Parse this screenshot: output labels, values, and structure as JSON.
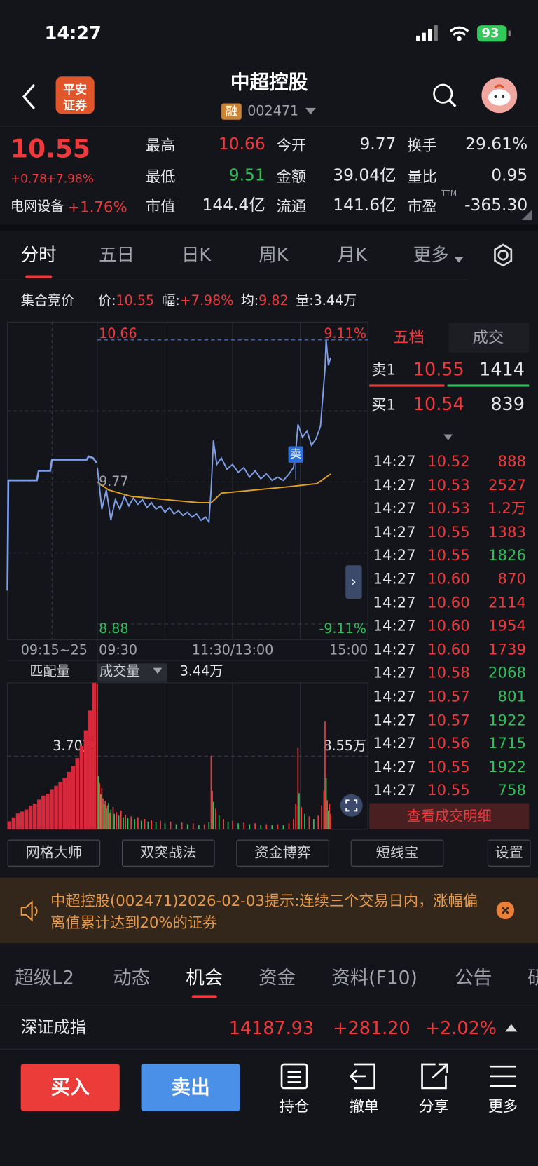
{
  "status_bar": {
    "time": "14:27",
    "battery": "93"
  },
  "header": {
    "logo": [
      "平安",
      "证券"
    ],
    "title": "中超控股",
    "tag": "融",
    "code": "002471"
  },
  "quote": {
    "price": "10.55",
    "change": "+0.78",
    "change_pct": "+7.98%",
    "sector": "电网设备",
    "sector_pct": "+1.76%",
    "ttm": "TTM",
    "stats": [
      {
        "label": "最高",
        "value": "10.66",
        "tone": "up"
      },
      {
        "label": "今开",
        "value": "9.77",
        "tone": "flat"
      },
      {
        "label": "换手",
        "value": "29.61%",
        "tone": "flat"
      },
      {
        "label": "最低",
        "value": "9.51",
        "tone": "down"
      },
      {
        "label": "金额",
        "value": "39.04亿",
        "tone": "flat"
      },
      {
        "label": "量比",
        "value": "0.95",
        "tone": "flat"
      },
      {
        "label": "市值",
        "value": "144.4亿",
        "tone": "flat"
      },
      {
        "label": "流通",
        "value": "141.6亿",
        "tone": "flat"
      },
      {
        "label": "市盈",
        "value": "-365.30",
        "tone": "flat"
      }
    ]
  },
  "tabs": [
    "分时",
    "五日",
    "日K",
    "周K",
    "月K",
    "更多"
  ],
  "active_tab": 0,
  "summary": {
    "label": "集合竞价",
    "items": [
      {
        "label": "价:",
        "value": "10.55",
        "tone": "up"
      },
      {
        "label": "幅:",
        "value": "+7.98%",
        "tone": "up"
      },
      {
        "label": "均:",
        "value": "9.82",
        "tone": "up"
      },
      {
        "label": "量:",
        "value": "3.44万",
        "tone": "flat"
      }
    ]
  },
  "chart": {
    "ylim": [
      8.88,
      10.66
    ],
    "yticks": [
      10.66,
      9.77,
      8.88
    ],
    "pct_labels": [
      "9.11%",
      "-9.11%"
    ],
    "xlim": [
      0,
      240
    ],
    "auction_xlim": [
      0,
      10
    ],
    "x_labels": [
      "09:15~25",
      "09:30",
      "11:30/13:00",
      "15:00"
    ],
    "sell_marker": {
      "label": "卖",
      "minute": 176
    },
    "price_line": {
      "minutes": [
        0,
        4,
        8,
        12,
        16,
        20,
        24,
        28,
        32,
        36,
        40,
        44,
        48,
        52,
        56,
        60,
        64,
        68,
        72,
        76,
        80,
        84,
        88,
        92,
        96,
        99,
        101,
        103,
        106,
        110,
        115,
        120,
        125,
        130,
        135,
        140,
        145,
        150,
        155,
        160,
        165,
        170,
        174,
        176,
        178,
        182,
        186,
        190,
        194,
        198,
        200,
        202,
        203,
        205,
        207
      ],
      "prices": [
        9.86,
        9.6,
        9.72,
        9.53,
        9.66,
        9.6,
        9.68,
        9.62,
        9.67,
        9.63,
        9.66,
        9.61,
        9.64,
        9.6,
        9.62,
        9.58,
        9.61,
        9.57,
        9.59,
        9.56,
        9.58,
        9.55,
        9.57,
        9.53,
        9.55,
        9.52,
        9.73,
        10.03,
        9.88,
        9.92,
        9.85,
        9.88,
        9.83,
        9.86,
        9.8,
        9.84,
        9.79,
        9.82,
        9.78,
        9.8,
        9.78,
        9.82,
        9.86,
        9.96,
        10.13,
        10.05,
        10.09,
        10,
        10.04,
        10.12,
        10.3,
        10.48,
        10.66,
        10.5,
        10.55
      ]
    },
    "avg_line": {
      "minutes": [
        0,
        10,
        30,
        60,
        90,
        101,
        110,
        140,
        170,
        195,
        207
      ],
      "prices": [
        9.77,
        9.72,
        9.68,
        9.66,
        9.64,
        9.64,
        9.7,
        9.72,
        9.74,
        9.76,
        9.82
      ]
    },
    "auction_line": {
      "minutes": [
        0,
        0.1,
        3.3,
        3.5,
        4.8,
        5,
        8.9,
        9.1,
        9.6,
        10
      ],
      "prices": [
        9.09,
        9.78,
        9.78,
        9.84,
        9.84,
        9.91,
        9.91,
        9.93,
        9.92,
        9.89
      ]
    }
  },
  "volume": {
    "left_label": "匹配量",
    "selector": "成交量",
    "value": "3.44万",
    "ylim": [
      0,
      17.1
    ],
    "yticks": [
      {
        "value": 8.55,
        "label": "8.55万"
      }
    ],
    "auction_ylim": [
      0,
      7.4
    ],
    "auction_yticks": [
      {
        "value": 3.7,
        "label": "3.70万"
      }
    ],
    "bars": [
      [
        0,
        17,
        true
      ],
      [
        1,
        6.2,
        false
      ],
      [
        2,
        5.4,
        true
      ],
      [
        3,
        4.1,
        false
      ],
      [
        4,
        4.8,
        true
      ],
      [
        5,
        3.6,
        true
      ],
      [
        6,
        2.9,
        false
      ],
      [
        7,
        3.3,
        true
      ],
      [
        8,
        2.4,
        false
      ],
      [
        9,
        2.8,
        true
      ],
      [
        10,
        3.1,
        false
      ],
      [
        11,
        1.9,
        true
      ],
      [
        12,
        2.3,
        false
      ],
      [
        14,
        2.6,
        true
      ],
      [
        15,
        1.8,
        false
      ],
      [
        17,
        2,
        true
      ],
      [
        19,
        1.6,
        false
      ],
      [
        21,
        2.2,
        true
      ],
      [
        23,
        1.4,
        false
      ],
      [
        25,
        1.7,
        true
      ],
      [
        27,
        1.3,
        false
      ],
      [
        30,
        1.5,
        true
      ],
      [
        33,
        1.2,
        false
      ],
      [
        36,
        1.4,
        true
      ],
      [
        39,
        1,
        false
      ],
      [
        42,
        1.2,
        true
      ],
      [
        45,
        0.9,
        false
      ],
      [
        48,
        1.1,
        true
      ],
      [
        52,
        0.8,
        false
      ],
      [
        56,
        1,
        true
      ],
      [
        60,
        0.7,
        false
      ],
      [
        65,
        0.9,
        true
      ],
      [
        70,
        0.6,
        false
      ],
      [
        75,
        0.8,
        true
      ],
      [
        80,
        0.6,
        false
      ],
      [
        85,
        0.7,
        true
      ],
      [
        90,
        0.5,
        false
      ],
      [
        95,
        0.6,
        true
      ],
      [
        99,
        0.8,
        false
      ],
      [
        101,
        8.6,
        true
      ],
      [
        102,
        4.5,
        true
      ],
      [
        103,
        3.2,
        false
      ],
      [
        105,
        2.4,
        true
      ],
      [
        108,
        1.6,
        false
      ],
      [
        112,
        1.2,
        true
      ],
      [
        116,
        0.9,
        false
      ],
      [
        120,
        1,
        true
      ],
      [
        125,
        0.7,
        false
      ],
      [
        130,
        0.8,
        true
      ],
      [
        135,
        0.6,
        false
      ],
      [
        140,
        0.7,
        true
      ],
      [
        145,
        0.5,
        false
      ],
      [
        150,
        0.6,
        true
      ],
      [
        155,
        0.5,
        false
      ],
      [
        160,
        0.6,
        true
      ],
      [
        165,
        0.5,
        false
      ],
      [
        170,
        0.7,
        true
      ],
      [
        174,
        1.2,
        true
      ],
      [
        176,
        3,
        true
      ],
      [
        178,
        9.5,
        true
      ],
      [
        179,
        4.2,
        false
      ],
      [
        181,
        2.6,
        true
      ],
      [
        184,
        1.8,
        false
      ],
      [
        188,
        1.5,
        true
      ],
      [
        192,
        1.2,
        false
      ],
      [
        196,
        1.6,
        true
      ],
      [
        199,
        2.8,
        true
      ],
      [
        201,
        4.5,
        true
      ],
      [
        202,
        12.6,
        true
      ],
      [
        203,
        6,
        false
      ],
      [
        204,
        3.4,
        true
      ],
      [
        205,
        2.2,
        false
      ],
      [
        206,
        3,
        true
      ],
      [
        207,
        1.8,
        true
      ]
    ],
    "auction_bars": [
      0.4,
      0.6,
      0.8,
      0.9,
      1,
      1.2,
      1.3,
      1.5,
      1.7,
      1.8,
      2,
      2.2,
      2.4,
      2.6,
      2.9,
      3.2,
      3.6,
      4.2,
      5,
      6,
      7.4
    ]
  },
  "order_book": {
    "tabs": [
      "五档",
      "成交"
    ],
    "ask": {
      "label": "卖1",
      "price": "10.55",
      "volume": "1414"
    },
    "bid": {
      "label": "买1",
      "price": "10.54",
      "volume": "839"
    },
    "trades": [
      {
        "time": "14:27",
        "price": "10.52",
        "volume": "888",
        "up": true
      },
      {
        "time": "14:27",
        "price": "10.53",
        "volume": "2527",
        "up": true
      },
      {
        "time": "14:27",
        "price": "10.53",
        "volume": "1.2万",
        "up": true
      },
      {
        "time": "14:27",
        "price": "10.55",
        "volume": "1383",
        "up": true
      },
      {
        "time": "14:27",
        "price": "10.55",
        "volume": "1826",
        "up": false
      },
      {
        "time": "14:27",
        "price": "10.60",
        "volume": "870",
        "up": true
      },
      {
        "time": "14:27",
        "price": "10.60",
        "volume": "2114",
        "up": true
      },
      {
        "time": "14:27",
        "price": "10.60",
        "volume": "1954",
        "up": true
      },
      {
        "time": "14:27",
        "price": "10.60",
        "volume": "1739",
        "up": true
      },
      {
        "time": "14:27",
        "price": "10.58",
        "volume": "2068",
        "up": false
      },
      {
        "time": "14:27",
        "price": "10.57",
        "volume": "801",
        "up": false
      },
      {
        "time": "14:27",
        "price": "10.57",
        "volume": "1922",
        "up": false
      },
      {
        "time": "14:27",
        "price": "10.56",
        "volume": "1715",
        "up": false
      },
      {
        "time": "14:27",
        "price": "10.55",
        "volume": "1922",
        "up": false
      },
      {
        "time": "14:27",
        "price": "10.55",
        "volume": "758",
        "up": false
      }
    ],
    "detail_button": "查看成交明细"
  },
  "tools": [
    "网格大师",
    "双突战法",
    "资金博弈",
    "短线宝",
    "设置"
  ],
  "notice": {
    "text": "中超控股(002471)2026-02-03提示:连续三个交易日内，涨幅偏离值累计达到20%的证券"
  },
  "info_tabs": [
    "超级L2",
    "动态",
    "机会",
    "资金",
    "资料(F10)",
    "公告",
    "研"
  ],
  "active_info_tab": 2,
  "index": {
    "name": "深证成指",
    "value": "14187.93",
    "change": "+281.20",
    "change_pct": "+2.02%"
  },
  "actions": {
    "buy": "买入",
    "sell": "卖出",
    "nav": [
      "持仓",
      "撤单",
      "分享",
      "更多"
    ]
  }
}
